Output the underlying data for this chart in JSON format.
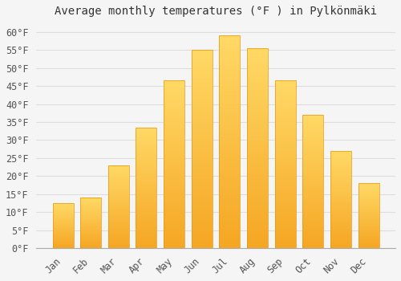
{
  "title": "Average monthly temperatures (°F ) in Pylkönmäki",
  "months": [
    "Jan",
    "Feb",
    "Mar",
    "Apr",
    "May",
    "Jun",
    "Jul",
    "Aug",
    "Sep",
    "Oct",
    "Nov",
    "Dec"
  ],
  "values": [
    12.5,
    14.0,
    23.0,
    33.5,
    46.5,
    55.0,
    59.0,
    55.5,
    46.5,
    37.0,
    27.0,
    18.0
  ],
  "bar_color_bottom": "#F5A623",
  "bar_color_top": "#FFD966",
  "bar_edge_color": "#E8960A",
  "ylim": [
    0,
    63
  ],
  "yticks": [
    0,
    5,
    10,
    15,
    20,
    25,
    30,
    35,
    40,
    45,
    50,
    55,
    60
  ],
  "background_color": "#f5f5f5",
  "plot_bg_color": "#f5f5f5",
  "grid_color": "#dddddd",
  "title_fontsize": 10,
  "tick_fontsize": 8.5
}
